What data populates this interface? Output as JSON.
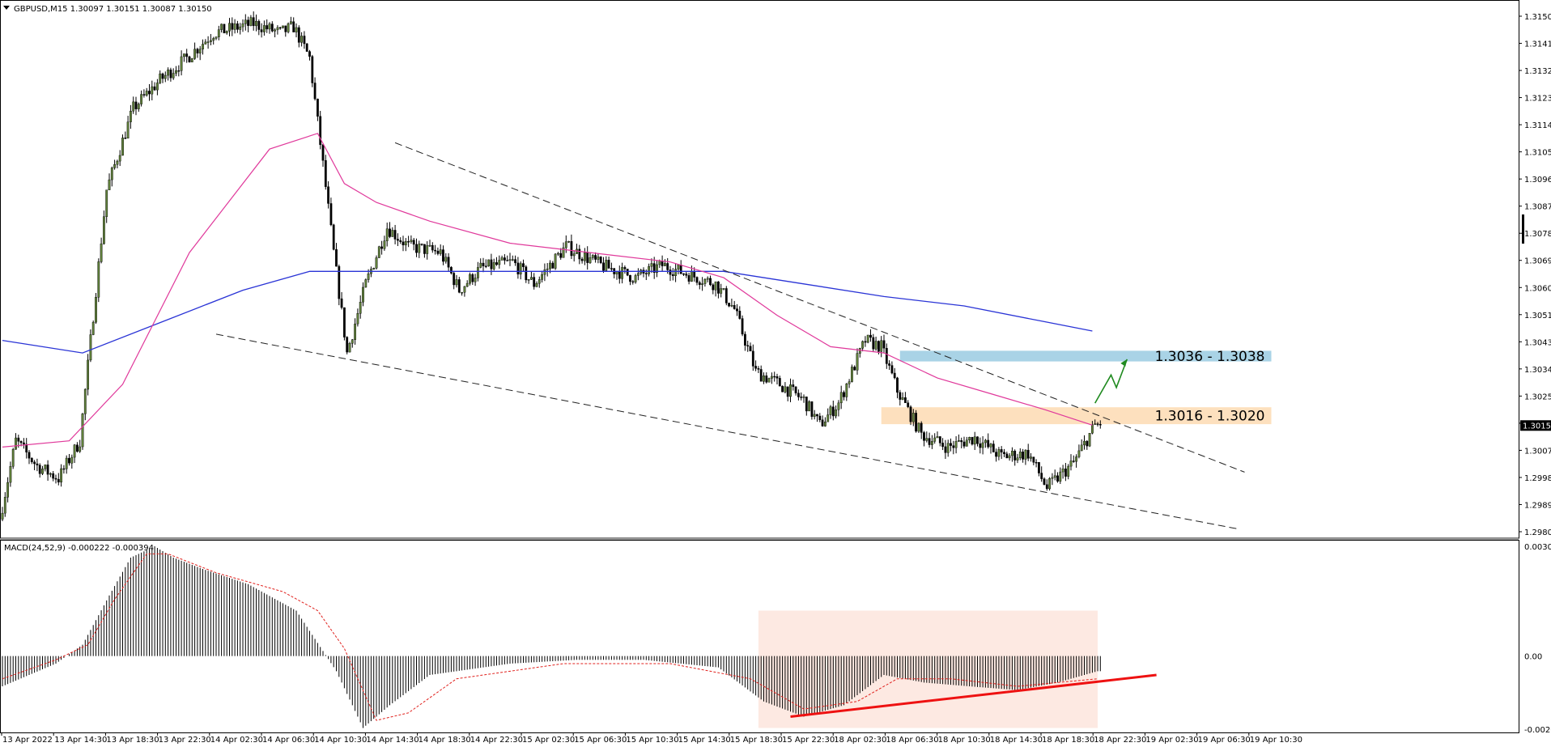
{
  "header": {
    "symbol_line": "GBPUSD,M15  1.30097 1.30151 1.30087 1.30150",
    "indicator_line": "MACD(24,52,9) -0.000222 -0.000394"
  },
  "colors": {
    "bull_body": "#5f7f3a",
    "bear_body": "#000000",
    "ma_fast": "#e0399b",
    "ma_slow": "#2a34d6",
    "resistance_zone": "#a9d3e6",
    "support_zone": "#fde0be",
    "macd_signal": "#e0201c",
    "macd_zone": "#fde9e2",
    "trend_up": "#ee1111",
    "arrow": "#1f8a1f"
  },
  "chart_data": [
    {
      "type": "candlestick",
      "name": "GBPUSD,M15",
      "ylim": [
        1.29805,
        1.315
      ],
      "y_ticks": [
        "1.31500",
        "1.31410",
        "1.31320",
        "1.31230",
        "1.31140",
        "1.31055",
        "1.30965",
        "1.30875",
        "1.30785",
        "1.30695",
        "1.30605",
        "1.30515",
        "1.30430",
        "1.30340",
        "1.30250",
        "1.30160",
        "1.30070",
        "1.29980",
        "1.29890",
        "1.29805"
      ],
      "x_ticks": [
        "13 Apr 2022",
        "13 Apr 14:30",
        "13 Apr 18:30",
        "13 Apr 22:30",
        "14 Apr 02:30",
        "14 Apr 06:30",
        "14 Apr 10:30",
        "14 Apr 14:30",
        "14 Apr 18:30",
        "14 Apr 22:30",
        "15 Apr 02:30",
        "15 Apr 06:30",
        "15 Apr 10:30",
        "15 Apr 14:30",
        "15 Apr 18:30",
        "15 Apr 22:30",
        "18 Apr 02:30",
        "18 Apr 06:30",
        "18 Apr 10:30",
        "18 Apr 14:30",
        "18 Apr 18:30",
        "18 Apr 22:30",
        "19 Apr 02:30",
        "19 Apr 06:30",
        "19 Apr 10:30"
      ],
      "current_price": "1.30150",
      "last_bar": {
        "open": 1.30097,
        "high": 1.30151,
        "low": 1.30087,
        "close": 1.3015
      },
      "close_path": [
        [
          0,
          1.2985
        ],
        [
          6,
          1.301
        ],
        [
          14,
          1.3002
        ],
        [
          22,
          1.2998
        ],
        [
          30,
          1.301
        ],
        [
          40,
          1.309
        ],
        [
          50,
          1.3116
        ],
        [
          60,
          1.3125
        ],
        [
          70,
          1.3132
        ],
        [
          80,
          1.314
        ],
        [
          95,
          1.3143
        ],
        [
          105,
          1.314
        ],
        [
          110,
          1.3142
        ],
        [
          116,
          1.3132
        ],
        [
          121,
          1.3098
        ],
        [
          125,
          1.307
        ],
        [
          130,
          1.3038
        ],
        [
          137,
          1.306
        ],
        [
          145,
          1.3078
        ],
        [
          153,
          1.3072
        ],
        [
          165,
          1.307
        ],
        [
          172,
          1.3058
        ],
        [
          180,
          1.3065
        ],
        [
          192,
          1.3067
        ],
        [
          200,
          1.306
        ],
        [
          212,
          1.3072
        ],
        [
          225,
          1.3066
        ],
        [
          238,
          1.3062
        ],
        [
          248,
          1.3066
        ],
        [
          258,
          1.3063
        ],
        [
          268,
          1.306
        ],
        [
          275,
          1.3052
        ],
        [
          283,
          1.3032
        ],
        [
          292,
          1.3028
        ],
        [
          301,
          1.3023
        ],
        [
          307,
          1.3015
        ],
        [
          314,
          1.3022
        ],
        [
          324,
          1.3042
        ],
        [
          330,
          1.304
        ],
        [
          336,
          1.3026
        ],
        [
          345,
          1.3012
        ],
        [
          355,
          1.3008
        ],
        [
          365,
          1.3011
        ],
        [
          375,
          1.3005
        ],
        [
          385,
          1.3006
        ],
        [
          392,
          1.2995
        ],
        [
          402,
          1.3003
        ],
        [
          410,
          1.3015
        ]
      ],
      "ma_fast": [
        [
          0,
          1.3008
        ],
        [
          25,
          1.301
        ],
        [
          45,
          1.3028
        ],
        [
          70,
          1.307
        ],
        [
          100,
          1.3103
        ],
        [
          118,
          1.3108
        ],
        [
          128,
          1.3092
        ],
        [
          140,
          1.3086
        ],
        [
          160,
          1.308
        ],
        [
          190,
          1.3073
        ],
        [
          220,
          1.307
        ],
        [
          250,
          1.3067
        ],
        [
          270,
          1.3062
        ],
        [
          290,
          1.305
        ],
        [
          310,
          1.304
        ],
        [
          330,
          1.3038
        ],
        [
          350,
          1.303
        ],
        [
          370,
          1.3025
        ],
        [
          390,
          1.302
        ],
        [
          408,
          1.3015
        ]
      ],
      "ma_slow": [
        [
          0,
          1.3042
        ],
        [
          30,
          1.3038
        ],
        [
          60,
          1.3048
        ],
        [
          90,
          1.3058
        ],
        [
          115,
          1.3064
        ],
        [
          130,
          1.3064
        ],
        [
          170,
          1.3064
        ],
        [
          230,
          1.3064
        ],
        [
          270,
          1.3064
        ],
        [
          300,
          1.306
        ],
        [
          330,
          1.3056
        ],
        [
          360,
          1.3053
        ],
        [
          390,
          1.3048
        ],
        [
          408,
          1.3045
        ]
      ],
      "trendlines": [
        {
          "style": "dashed",
          "points": [
            [
              147,
              1.3105
            ],
            [
              465,
              1.3
            ]
          ]
        },
        {
          "style": "dashed",
          "points": [
            [
              80,
              1.3044
            ],
            [
              462,
              1.2982
            ]
          ]
        }
      ],
      "zones": [
        {
          "label": "1.3036 - 1.3038",
          "from_bar": 336,
          "to_bar": 475,
          "low": 1.3036,
          "high": 1.3038
        },
        {
          "label": "1.3016 - 1.3020",
          "from_bar": 329,
          "to_bar": 475,
          "low": 1.3016,
          "high": 1.302
        }
      ],
      "projection_arrow": [
        [
          409,
          1.3022
        ],
        [
          415,
          1.3031
        ],
        [
          417,
          1.3027
        ],
        [
          421,
          1.3036
        ]
      ]
    },
    {
      "type": "histogram",
      "name": "MACD(24,52,9)",
      "values_label": "-0.000222 -0.000394",
      "ylim": [
        -0.002018,
        0.003071
      ],
      "y_ticks": [
        "0.003071",
        "0.00",
        "-0.002018"
      ],
      "histogram_path": [
        [
          0,
          -0.0008
        ],
        [
          10,
          -0.0005
        ],
        [
          20,
          -0.0002
        ],
        [
          30,
          0.0003
        ],
        [
          40,
          0.0016
        ],
        [
          48,
          0.0026
        ],
        [
          57,
          0.0029
        ],
        [
          64,
          0.0026
        ],
        [
          75,
          0.0023
        ],
        [
          92,
          0.0019
        ],
        [
          110,
          0.0012
        ],
        [
          125,
          -0.0004
        ],
        [
          135,
          -0.0019
        ],
        [
          145,
          -0.0013
        ],
        [
          160,
          -0.0005
        ],
        [
          190,
          -0.0002
        ],
        [
          215,
          -0.0001
        ],
        [
          240,
          -0.0001
        ],
        [
          268,
          -0.0003
        ],
        [
          285,
          -0.0012
        ],
        [
          300,
          -0.0016
        ],
        [
          315,
          -0.0013
        ],
        [
          330,
          -0.0005
        ],
        [
          345,
          -0.0007
        ],
        [
          362,
          -0.0008
        ],
        [
          380,
          -0.0009
        ],
        [
          395,
          -0.0007
        ],
        [
          410,
          -0.0004
        ]
      ],
      "signal_path": [
        [
          0,
          -0.0006
        ],
        [
          20,
          -0.0001
        ],
        [
          32,
          0.0003
        ],
        [
          42,
          0.0015
        ],
        [
          54,
          0.0027
        ],
        [
          62,
          0.0027
        ],
        [
          80,
          0.0022
        ],
        [
          105,
          0.0017
        ],
        [
          118,
          0.0012
        ],
        [
          128,
          0.0002
        ],
        [
          140,
          -0.0017
        ],
        [
          152,
          -0.0015
        ],
        [
          170,
          -0.0006
        ],
        [
          210,
          -0.0002
        ],
        [
          250,
          -0.0002
        ],
        [
          280,
          -0.0006
        ],
        [
          300,
          -0.0014
        ],
        [
          320,
          -0.0012
        ],
        [
          335,
          -0.0006
        ],
        [
          355,
          -0.0006
        ],
        [
          380,
          -0.0008
        ],
        [
          410,
          -0.0006
        ]
      ],
      "highlight_zone": {
        "from_bar": 283,
        "to_bar": 410,
        "low": -0.0019,
        "high": 0.0012
      },
      "trendline": [
        [
          295,
          -0.0016
        ],
        [
          432,
          -0.0005
        ]
      ]
    }
  ]
}
